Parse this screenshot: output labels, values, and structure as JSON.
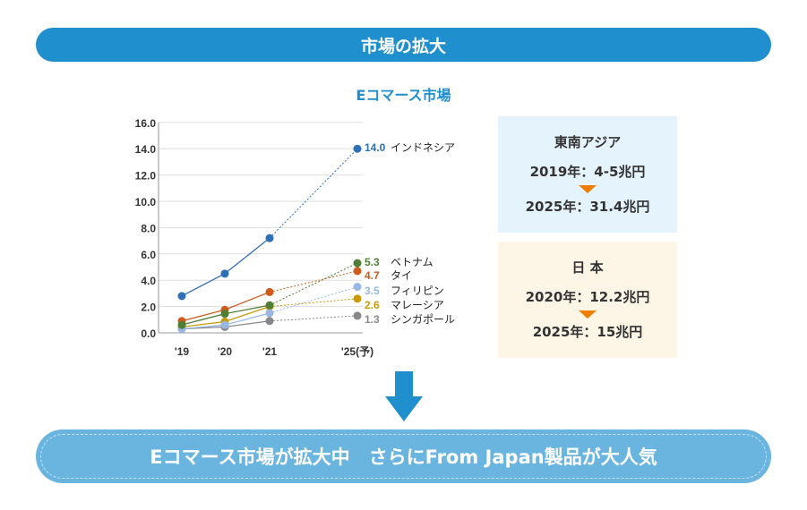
{
  "header": {
    "title": "市場の拡大"
  },
  "chart_data": {
    "type": "line",
    "title": "Eコマース市場",
    "categories": [
      "'19",
      "'20",
      "'21",
      "'25(予)"
    ],
    "ylim": [
      0,
      16
    ],
    "yticks": [
      "0.0",
      "2.0",
      "4.0",
      "6.0",
      "8.0",
      "10.0",
      "12.0",
      "14.0",
      "16.0"
    ],
    "series": [
      {
        "name": "インドネシア",
        "color": "#2e6fb5",
        "values": [
          2.8,
          4.5,
          7.2,
          14.0
        ],
        "label": "14.0"
      },
      {
        "name": "ベトナム",
        "color": "#4f7f35",
        "values": [
          0.6,
          1.45,
          2.1,
          5.3
        ],
        "label": "5.3"
      },
      {
        "name": "タイ",
        "color": "#cf5a1a",
        "values": [
          0.9,
          1.75,
          3.1,
          4.7
        ],
        "label": "4.7"
      },
      {
        "name": "フィリピン",
        "color": "#98b7e3",
        "values": [
          0.3,
          0.6,
          1.5,
          3.5
        ],
        "label": "3.5"
      },
      {
        "name": "マレーシア",
        "color": "#c99a05",
        "values": [
          0.45,
          0.85,
          2.0,
          2.6
        ],
        "label": "2.6"
      },
      {
        "name": "シンガポール",
        "color": "#888888",
        "values": [
          0.3,
          0.45,
          0.9,
          1.3
        ],
        "label": "1.3"
      }
    ]
  },
  "sea": {
    "title": "東南アジア",
    "from": "2019年：4-5兆円",
    "to": "2025年：31.4兆円"
  },
  "japan": {
    "title": "日 本",
    "from": "2020年：12.2兆円",
    "to": "2025年：15兆円"
  },
  "banner": {
    "text": "Eコマース市場が拡大中　さらにFrom Japan製品が大人気"
  }
}
